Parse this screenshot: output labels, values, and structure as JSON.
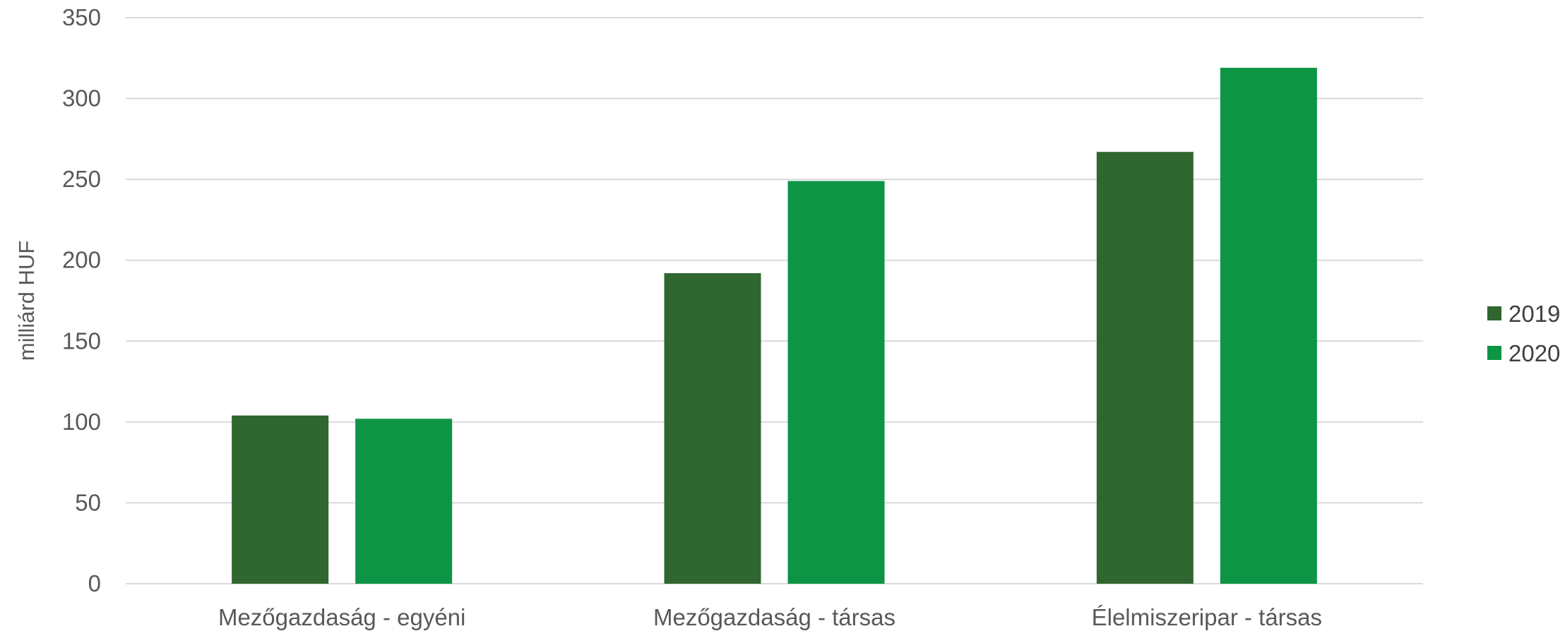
{
  "chart_data": {
    "type": "bar",
    "title": "",
    "xlabel": "",
    "ylabel": "milliárd HUF",
    "categories": [
      "Mezőgazdaság - egyéni",
      "Mezőgazdaság - társas",
      "Élelmiszeripar - társas"
    ],
    "series": [
      {
        "name": "2019",
        "color": "#306630",
        "values": [
          104,
          192,
          267
        ]
      },
      {
        "name": "2020",
        "color": "#0e9445",
        "values": [
          102,
          249,
          319
        ]
      }
    ],
    "ylim": [
      0,
      350
    ],
    "yticks": [
      0,
      50,
      100,
      150,
      200,
      250,
      300,
      350
    ],
    "grid": true,
    "gridColor": "#d9d9d9",
    "legend_position": "right"
  }
}
